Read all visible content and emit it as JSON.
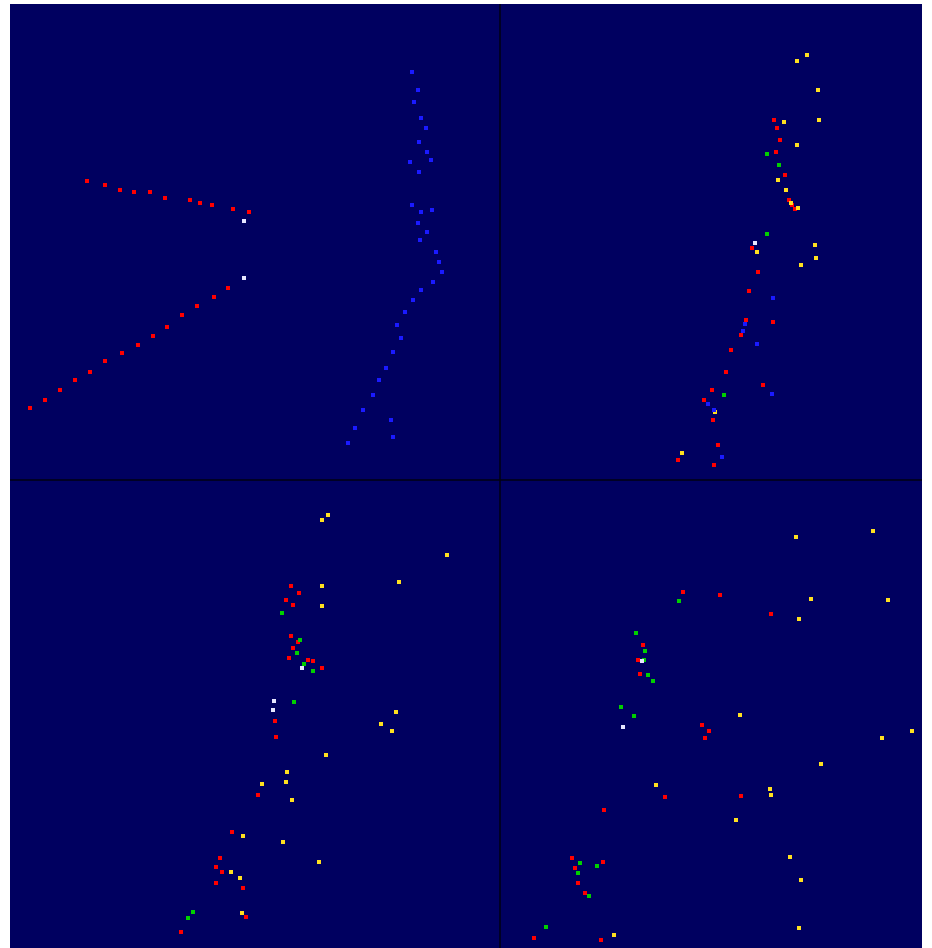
{
  "colors": {
    "background": "#000060",
    "divider": "#000010",
    "red": "#ff0000",
    "blue": "#1a1aff",
    "yellow": "#ffe020",
    "green": "#00d000",
    "white": "#e6e6ff"
  },
  "panels": [
    {
      "name": "panel-top-left",
      "hits": {
        "red": [
          [
            30,
            408
          ],
          [
            45,
            400
          ],
          [
            60,
            390
          ],
          [
            75,
            380
          ],
          [
            90,
            372
          ],
          [
            105,
            361
          ],
          [
            122,
            353
          ],
          [
            138,
            345
          ],
          [
            153,
            336
          ],
          [
            167,
            327
          ],
          [
            182,
            315
          ],
          [
            197,
            306
          ],
          [
            214,
            297
          ],
          [
            228,
            288
          ],
          [
            87,
            181
          ],
          [
            105,
            185
          ],
          [
            120,
            190
          ],
          [
            134,
            192
          ],
          [
            150,
            192
          ],
          [
            165,
            198
          ],
          [
            190,
            200
          ],
          [
            200,
            203
          ],
          [
            212,
            205
          ],
          [
            233,
            209
          ],
          [
            249,
            212
          ]
        ],
        "white": [
          [
            244,
            221
          ],
          [
            244,
            278
          ]
        ],
        "blue": [
          [
            412,
            72
          ],
          [
            418,
            90
          ],
          [
            414,
            102
          ],
          [
            421,
            118
          ],
          [
            426,
            128
          ],
          [
            419,
            142
          ],
          [
            427,
            152
          ],
          [
            431,
            160
          ],
          [
            410,
            162
          ],
          [
            419,
            172
          ],
          [
            412,
            205
          ],
          [
            421,
            212
          ],
          [
            432,
            210
          ],
          [
            418,
            223
          ],
          [
            427,
            232
          ],
          [
            420,
            240
          ],
          [
            436,
            252
          ],
          [
            439,
            262
          ],
          [
            442,
            272
          ],
          [
            433,
            282
          ],
          [
            421,
            290
          ],
          [
            413,
            300
          ],
          [
            405,
            312
          ],
          [
            397,
            325
          ],
          [
            401,
            338
          ],
          [
            393,
            352
          ],
          [
            386,
            368
          ],
          [
            379,
            380
          ],
          [
            373,
            395
          ],
          [
            363,
            410
          ],
          [
            355,
            428
          ],
          [
            348,
            443
          ],
          [
            393,
            437
          ],
          [
            391,
            420
          ]
        ]
      }
    },
    {
      "name": "panel-top-right",
      "hits": {
        "red": [
          [
            774,
            120
          ],
          [
            777,
            128
          ],
          [
            780,
            140
          ],
          [
            776,
            152
          ],
          [
            785,
            175
          ],
          [
            789,
            200
          ],
          [
            792,
            205
          ],
          [
            795,
            209
          ],
          [
            752,
            248
          ],
          [
            758,
            272
          ],
          [
            749,
            291
          ],
          [
            746,
            320
          ],
          [
            741,
            335
          ],
          [
            731,
            350
          ],
          [
            726,
            372
          ],
          [
            712,
            390
          ],
          [
            704,
            400
          ],
          [
            713,
            420
          ],
          [
            718,
            445
          ],
          [
            714,
            465
          ],
          [
            763,
            385
          ],
          [
            773,
            322
          ],
          [
            678,
            460
          ]
        ],
        "yellow": [
          [
            797,
            61
          ],
          [
            807,
            55
          ],
          [
            818,
            90
          ],
          [
            819,
            120
          ],
          [
            797,
            145
          ],
          [
            784,
            122
          ],
          [
            778,
            180
          ],
          [
            786,
            190
          ],
          [
            791,
            203
          ],
          [
            798,
            208
          ],
          [
            815,
            245
          ],
          [
            816,
            258
          ],
          [
            801,
            265
          ],
          [
            757,
            252
          ],
          [
            682,
            453
          ],
          [
            715,
            412
          ]
        ],
        "green": [
          [
            767,
            154
          ],
          [
            779,
            165
          ],
          [
            767,
            234
          ],
          [
            724,
            395
          ]
        ],
        "white": [
          [
            755,
            243
          ]
        ],
        "blue": [
          [
            773,
            298
          ],
          [
            745,
            324
          ],
          [
            743,
            331
          ],
          [
            757,
            344
          ],
          [
            708,
            404
          ],
          [
            714,
            410
          ],
          [
            722,
            457
          ],
          [
            772,
            394
          ]
        ]
      }
    },
    {
      "name": "panel-bottom-left",
      "hits": {
        "red": [
          [
            291,
            586
          ],
          [
            299,
            593
          ],
          [
            286,
            600
          ],
          [
            293,
            605
          ],
          [
            291,
            636
          ],
          [
            298,
            642
          ],
          [
            293,
            648
          ],
          [
            289,
            658
          ],
          [
            308,
            660
          ],
          [
            313,
            661
          ],
          [
            322,
            668
          ],
          [
            275,
            721
          ],
          [
            276,
            737
          ],
          [
            258,
            795
          ],
          [
            232,
            832
          ],
          [
            220,
            858
          ],
          [
            216,
            867
          ],
          [
            222,
            872
          ],
          [
            216,
            883
          ],
          [
            243,
            888
          ],
          [
            246,
            917
          ],
          [
            181,
            932
          ]
        ],
        "yellow": [
          [
            322,
            520
          ],
          [
            328,
            515
          ],
          [
            447,
            555
          ],
          [
            399,
            582
          ],
          [
            322,
            586
          ],
          [
            322,
            606
          ],
          [
            396,
            712
          ],
          [
            381,
            724
          ],
          [
            392,
            731
          ],
          [
            326,
            755
          ],
          [
            287,
            772
          ],
          [
            286,
            782
          ],
          [
            292,
            800
          ],
          [
            262,
            784
          ],
          [
            243,
            836
          ],
          [
            283,
            842
          ],
          [
            319,
            862
          ],
          [
            231,
            872
          ],
          [
            240,
            878
          ],
          [
            242,
            913
          ]
        ],
        "green": [
          [
            282,
            613
          ],
          [
            300,
            640
          ],
          [
            297,
            653
          ],
          [
            304,
            664
          ],
          [
            313,
            671
          ],
          [
            294,
            702
          ],
          [
            193,
            912
          ],
          [
            188,
            918
          ]
        ],
        "white": [
          [
            302,
            668
          ],
          [
            274,
            701
          ],
          [
            273,
            710
          ]
        ]
      }
    },
    {
      "name": "panel-bottom-right",
      "hits": {
        "red": [
          [
            683,
            592
          ],
          [
            720,
            595
          ],
          [
            771,
            614
          ],
          [
            643,
            645
          ],
          [
            638,
            660
          ],
          [
            640,
            674
          ],
          [
            702,
            725
          ],
          [
            709,
            731
          ],
          [
            705,
            738
          ],
          [
            741,
            796
          ],
          [
            665,
            797
          ],
          [
            604,
            810
          ],
          [
            572,
            858
          ],
          [
            575,
            868
          ],
          [
            603,
            862
          ],
          [
            578,
            883
          ],
          [
            585,
            893
          ],
          [
            534,
            938
          ],
          [
            601,
            940
          ]
        ],
        "yellow": [
          [
            796,
            537
          ],
          [
            873,
            531
          ],
          [
            888,
            600
          ],
          [
            811,
            599
          ],
          [
            799,
            619
          ],
          [
            740,
            715
          ],
          [
            882,
            738
          ],
          [
            912,
            731
          ],
          [
            821,
            764
          ],
          [
            770,
            789
          ],
          [
            771,
            795
          ],
          [
            656,
            785
          ],
          [
            736,
            820
          ],
          [
            790,
            857
          ],
          [
            801,
            880
          ],
          [
            614,
            935
          ],
          [
            799,
            928
          ]
        ],
        "green": [
          [
            679,
            601
          ],
          [
            636,
            633
          ],
          [
            645,
            651
          ],
          [
            644,
            660
          ],
          [
            648,
            675
          ],
          [
            653,
            681
          ],
          [
            621,
            707
          ],
          [
            634,
            716
          ],
          [
            580,
            863
          ],
          [
            597,
            866
          ],
          [
            578,
            873
          ],
          [
            589,
            896
          ],
          [
            546,
            927
          ]
        ],
        "white": [
          [
            642,
            661
          ],
          [
            623,
            727
          ]
        ]
      }
    }
  ]
}
